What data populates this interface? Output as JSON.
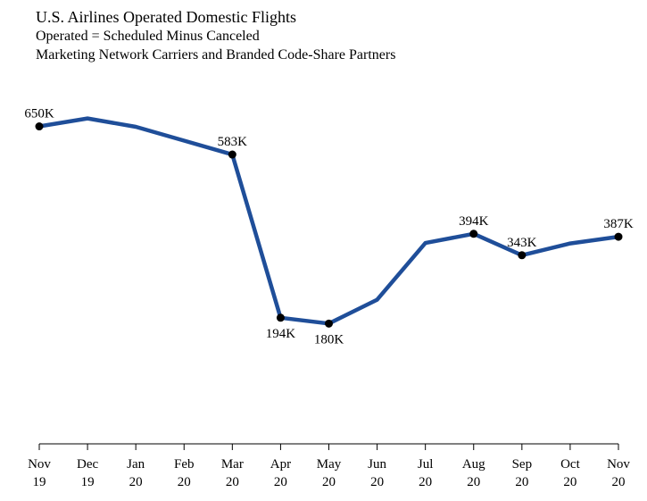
{
  "chart_data": {
    "type": "line",
    "title": "U.S. Airlines Operated Domestic Flights",
    "subtitle": "Operated = Scheduled Minus Canceled",
    "subtitle2": "Marketing Network Carriers and Branded Code-Share Partners",
    "xlabel": "",
    "ylabel": "",
    "categories": [
      {
        "month": "Nov",
        "year": "19"
      },
      {
        "month": "Dec",
        "year": "19"
      },
      {
        "month": "Jan",
        "year": "20"
      },
      {
        "month": "Feb",
        "year": "20"
      },
      {
        "month": "Mar",
        "year": "20"
      },
      {
        "month": "Apr",
        "year": "20"
      },
      {
        "month": "May",
        "year": "20"
      },
      {
        "month": "Jun",
        "year": "20"
      },
      {
        "month": "Jul",
        "year": "20"
      },
      {
        "month": "Aug",
        "year": "20"
      },
      {
        "month": "Sep",
        "year": "20"
      },
      {
        "month": "Oct",
        "year": "20"
      },
      {
        "month": "Nov",
        "year": "20"
      }
    ],
    "series": [
      {
        "values": [
          650,
          669,
          649,
          616,
          583,
          194,
          180,
          237,
          372,
          394,
          343,
          371,
          387
        ],
        "color": "#1f4e99"
      }
    ],
    "data_labels": [
      {
        "index": 0,
        "text": "650K",
        "position": "above"
      },
      {
        "index": 4,
        "text": "583K",
        "position": "above"
      },
      {
        "index": 5,
        "text": "194K",
        "position": "below"
      },
      {
        "index": 6,
        "text": "180K",
        "position": "below"
      },
      {
        "index": 9,
        "text": "394K",
        "position": "above"
      },
      {
        "index": 10,
        "text": "343K",
        "position": "above"
      },
      {
        "index": 12,
        "text": "387K",
        "position": "above"
      }
    ],
    "ylim": [
      0,
      700
    ],
    "grid": false,
    "unit": "thousand flights"
  }
}
